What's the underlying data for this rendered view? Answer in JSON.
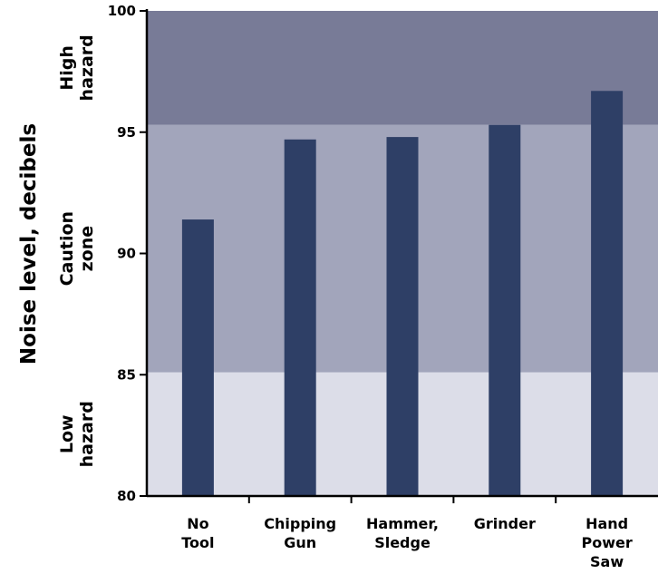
{
  "chart_data": {
    "type": "bar",
    "title": "",
    "xlabel": "",
    "ylabel": "Noise level, decibels",
    "ylim": [
      80,
      100
    ],
    "yticks": [
      80,
      85,
      90,
      95,
      100
    ],
    "categories": [
      [
        "No",
        "Tool"
      ],
      [
        "Chipping",
        "Gun"
      ],
      [
        "Hammer,",
        "Sledge"
      ],
      [
        "Grinder"
      ],
      [
        "Hand",
        "Power",
        "Saw"
      ]
    ],
    "values": [
      91.4,
      94.7,
      94.8,
      95.3,
      96.7
    ],
    "bar_color": "#2e3f66",
    "zones": [
      {
        "label": [
          "Low",
          "hazard"
        ],
        "from": 80,
        "to": 85.1,
        "color": "#dcdde8"
      },
      {
        "label": [
          "Caution",
          "zone"
        ],
        "from": 85.1,
        "to": 95.3,
        "color": "#a2a5bb"
      },
      {
        "label": [
          "High",
          "hazard"
        ],
        "from": 95.3,
        "to": 100,
        "color": "#787b97"
      }
    ]
  }
}
